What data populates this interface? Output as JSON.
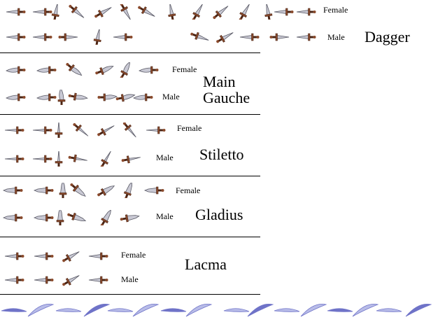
{
  "colors": {
    "background": "#ffffff",
    "blade": "#c9c9d4",
    "blade_edge": "#5a5a66",
    "hilt": "#8a4a2c",
    "hilt_dark": "#4a2414",
    "slash": "#6f73c8",
    "slash_light": "#b8bce8",
    "text": "#000000",
    "divider": "#000000"
  },
  "sections": [
    {
      "name": "Dagger",
      "female_label": "Female",
      "male_label": "Male"
    },
    {
      "name_line1": "Main",
      "name_line2": "Gauche",
      "female_label": "Female",
      "male_label": "Male"
    },
    {
      "name": "Stiletto",
      "female_label": "Female",
      "male_label": "Male"
    },
    {
      "name": "Gladius",
      "female_label": "Female",
      "male_label": "Male"
    },
    {
      "name": "Lacma",
      "female_label": "Female",
      "male_label": "Male"
    }
  ],
  "sprite_icon": "dagger-sprite-icon",
  "effect_icon": "slash-effect-icon"
}
